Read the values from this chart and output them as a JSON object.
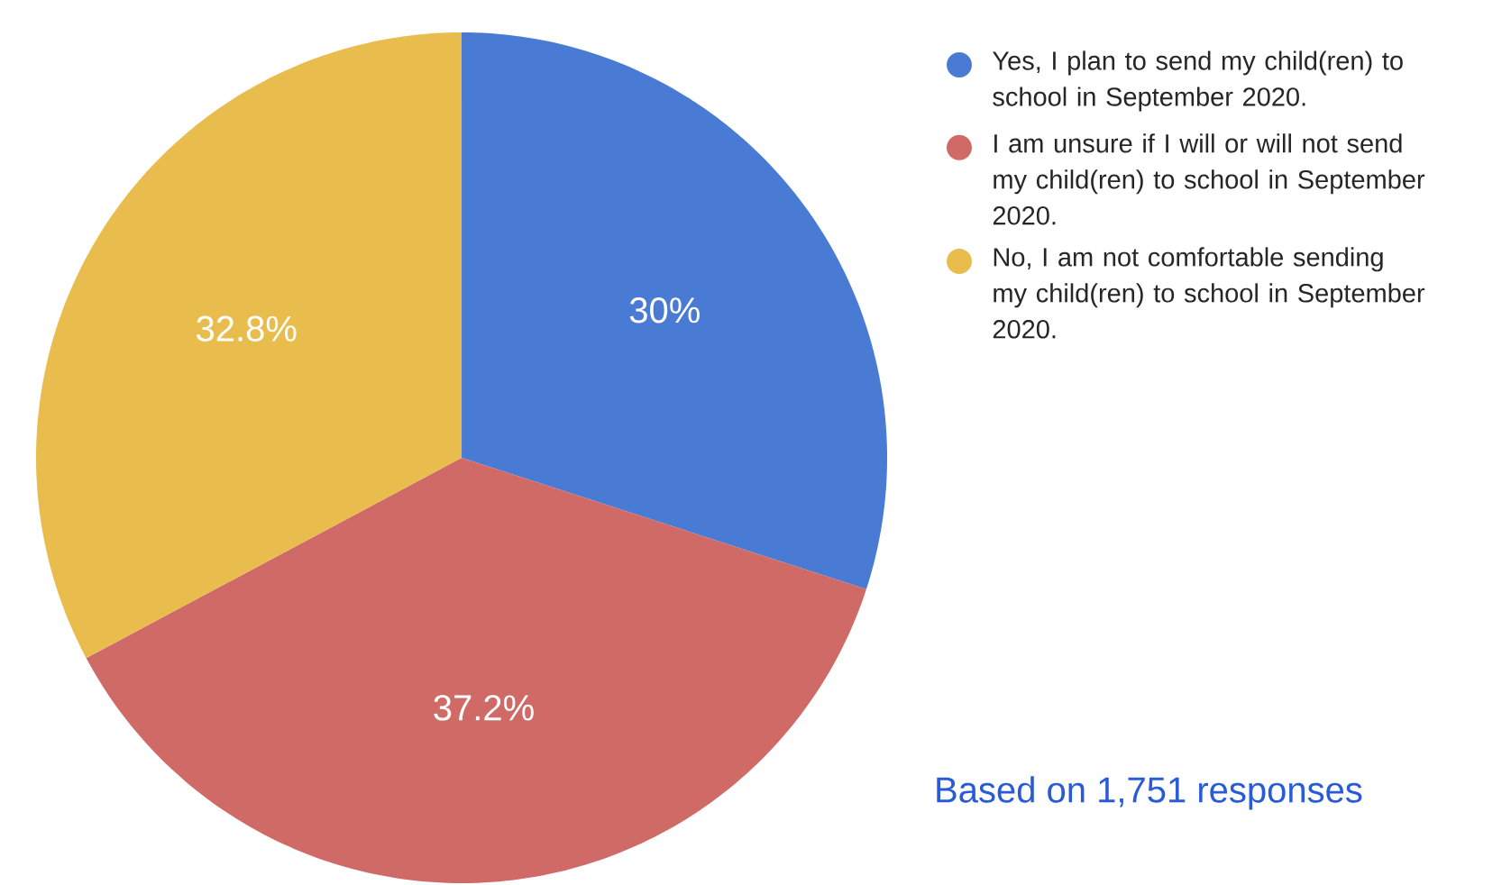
{
  "chart_data": {
    "type": "pie",
    "categories": [
      "Yes, I plan to send my child(ren) to school in September 2020.",
      "I am unsure if I will or will not send my child(ren) to school in September 2020.",
      "No, I am not comfortable sending my child(ren) to school in September 2020."
    ],
    "values": [
      30,
      37.2,
      32.8
    ],
    "value_labels": [
      "30%",
      "37.2%",
      "32.8%"
    ],
    "colors": [
      "#4a7bd4",
      "#d06a67",
      "#e9bd4d"
    ],
    "legend": "right",
    "annotations": [
      "Based on 1,751 responses"
    ]
  }
}
